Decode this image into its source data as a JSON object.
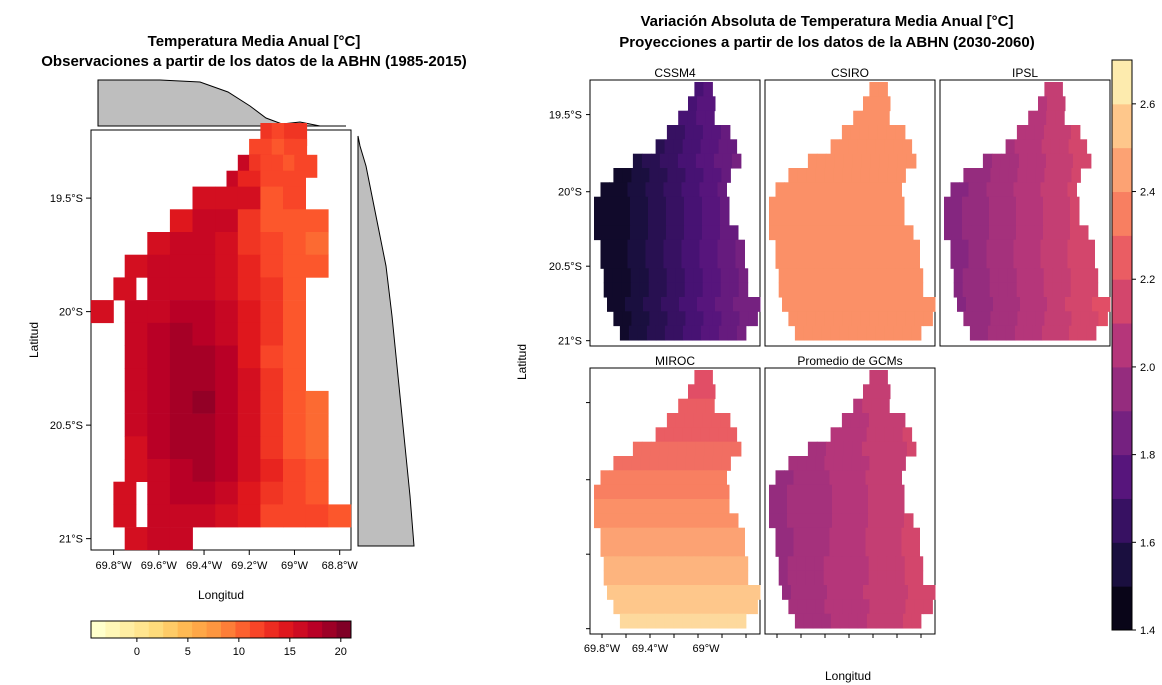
{
  "left_title": {
    "line1": "Temperatura Media Anual [°C]",
    "line2": "Observaciones a partir de los datos de la ABHN (1985-2015)"
  },
  "right_title": {
    "line1": "Variación Absoluta de Temperatura Media Anual [°C]",
    "line2": "Proyecciones a partir de los datos de la ABHN (2030-2060)"
  },
  "chart_data": [
    {
      "type": "heatmap",
      "title": "Temperatura Media Anual [°C]",
      "subtitle": "Observaciones a partir de los datos de la ABHN (1985-2015)",
      "xlabel": "Longitud",
      "ylabel": "Latitud",
      "x_ticks": [
        "69.8°W",
        "69.6°W",
        "69.4°W",
        "69.2°W",
        "69°W",
        "68.8°W"
      ],
      "y_ticks": [
        "19.5°S",
        "20°S",
        "20.5°S",
        "21°S"
      ],
      "x_range": [
        -69.9,
        -68.75
      ],
      "y_range": [
        -19.2,
        -21.05
      ],
      "colorbar": {
        "ticks": [
          "0",
          "5",
          "10",
          "15",
          "20"
        ],
        "range": [
          -4.5,
          21
        ],
        "palette": "YlOrRd"
      },
      "marginal_histograms": true,
      "cells": [
        [
          -19.22,
          -69.1,
          13
        ],
        [
          -19.22,
          -69.05,
          12
        ],
        [
          -19.22,
          -68.995,
          13
        ],
        [
          -19.29,
          -69.15,
          12
        ],
        [
          -19.29,
          -69.1,
          12
        ],
        [
          -19.29,
          -69.05,
          11
        ],
        [
          -19.29,
          -68.995,
          12
        ],
        [
          -19.36,
          -69.2,
          17
        ],
        [
          -19.36,
          -69.15,
          13
        ],
        [
          -19.36,
          -69.1,
          12
        ],
        [
          -19.36,
          -69.05,
          12
        ],
        [
          -19.36,
          -69.0,
          11
        ],
        [
          -19.36,
          -68.95,
          12
        ],
        [
          -19.43,
          -69.25,
          17
        ],
        [
          -19.43,
          -69.2,
          14
        ],
        [
          -19.43,
          -69.1,
          12
        ],
        [
          -19.43,
          -69.0,
          12
        ],
        [
          -19.5,
          -69.4,
          16
        ],
        [
          -19.5,
          -69.3,
          16
        ],
        [
          -19.5,
          -69.2,
          16
        ],
        [
          -19.5,
          -69.1,
          11
        ],
        [
          -19.5,
          -69.0,
          12
        ],
        [
          -19.6,
          -69.5,
          15
        ],
        [
          -19.6,
          -69.4,
          17
        ],
        [
          -19.6,
          -69.3,
          17
        ],
        [
          -19.6,
          -69.2,
          13
        ],
        [
          -19.6,
          -69.1,
          11
        ],
        [
          -19.6,
          -69.0,
          11
        ],
        [
          -19.6,
          -68.9,
          11
        ],
        [
          -19.7,
          -69.6,
          16
        ],
        [
          -19.7,
          -69.5,
          17
        ],
        [
          -19.7,
          -69.4,
          17
        ],
        [
          -19.7,
          -69.3,
          16
        ],
        [
          -19.7,
          -69.2,
          13
        ],
        [
          -19.7,
          -69.1,
          12
        ],
        [
          -19.7,
          -69.0,
          11
        ],
        [
          -19.7,
          -68.9,
          10
        ],
        [
          -19.8,
          -69.7,
          16
        ],
        [
          -19.8,
          -69.6,
          17
        ],
        [
          -19.8,
          -69.5,
          17
        ],
        [
          -19.8,
          -69.4,
          17
        ],
        [
          -19.8,
          -69.3,
          16
        ],
        [
          -19.8,
          -69.2,
          14
        ],
        [
          -19.8,
          -69.1,
          12
        ],
        [
          -19.8,
          -69.0,
          11
        ],
        [
          -19.8,
          -68.9,
          11
        ],
        [
          -19.9,
          -69.75,
          16
        ],
        [
          -19.9,
          -69.6,
          17
        ],
        [
          -19.9,
          -69.5,
          17
        ],
        [
          -19.9,
          -69.4,
          17
        ],
        [
          -19.9,
          -69.3,
          16
        ],
        [
          -19.9,
          -69.2,
          14
        ],
        [
          -19.9,
          -69.1,
          13
        ],
        [
          -19.9,
          -69.0,
          11
        ],
        [
          -20.0,
          -69.85,
          16
        ],
        [
          -20.0,
          -69.7,
          17
        ],
        [
          -20.0,
          -69.6,
          17
        ],
        [
          -20.0,
          -69.5,
          18
        ],
        [
          -20.0,
          -69.4,
          18
        ],
        [
          -20.0,
          -69.3,
          17
        ],
        [
          -20.0,
          -69.2,
          15
        ],
        [
          -20.0,
          -69.1,
          13
        ],
        [
          -20.0,
          -69.0,
          11
        ],
        [
          -20.1,
          -69.7,
          17
        ],
        [
          -20.1,
          -69.6,
          18
        ],
        [
          -20.1,
          -69.5,
          19
        ],
        [
          -20.1,
          -69.4,
          18
        ],
        [
          -20.1,
          -69.3,
          17
        ],
        [
          -20.1,
          -69.2,
          15
        ],
        [
          -20.1,
          -69.1,
          13
        ],
        [
          -20.1,
          -69.0,
          11
        ],
        [
          -20.2,
          -69.7,
          17
        ],
        [
          -20.2,
          -69.6,
          18
        ],
        [
          -20.2,
          -69.5,
          19
        ],
        [
          -20.2,
          -69.4,
          19
        ],
        [
          -20.2,
          -69.3,
          18
        ],
        [
          -20.2,
          -69.2,
          15
        ],
        [
          -20.2,
          -69.1,
          12
        ],
        [
          -20.2,
          -69.0,
          11
        ],
        [
          -20.3,
          -69.7,
          17
        ],
        [
          -20.3,
          -69.6,
          18
        ],
        [
          -20.3,
          -69.5,
          19
        ],
        [
          -20.3,
          -69.4,
          19
        ],
        [
          -20.3,
          -69.3,
          18
        ],
        [
          -20.3,
          -69.2,
          16
        ],
        [
          -20.3,
          -69.1,
          13
        ],
        [
          -20.3,
          -69.0,
          11
        ],
        [
          -20.4,
          -69.7,
          17
        ],
        [
          -20.4,
          -69.6,
          18
        ],
        [
          -20.4,
          -69.5,
          19
        ],
        [
          -20.4,
          -69.4,
          20
        ],
        [
          -20.4,
          -69.3,
          18
        ],
        [
          -20.4,
          -69.2,
          16
        ],
        [
          -20.4,
          -69.1,
          13
        ],
        [
          -20.4,
          -69.0,
          11
        ],
        [
          -20.4,
          -68.9,
          10
        ],
        [
          -20.5,
          -69.7,
          17
        ],
        [
          -20.5,
          -69.6,
          18
        ],
        [
          -20.5,
          -69.5,
          19
        ],
        [
          -20.5,
          -69.4,
          19
        ],
        [
          -20.5,
          -69.3,
          18
        ],
        [
          -20.5,
          -69.2,
          16
        ],
        [
          -20.5,
          -69.1,
          13
        ],
        [
          -20.5,
          -69.0,
          11
        ],
        [
          -20.5,
          -68.9,
          10
        ],
        [
          -20.6,
          -69.7,
          16
        ],
        [
          -20.6,
          -69.6,
          18
        ],
        [
          -20.6,
          -69.5,
          19
        ],
        [
          -20.6,
          -69.4,
          19
        ],
        [
          -20.6,
          -69.3,
          18
        ],
        [
          -20.6,
          -69.2,
          16
        ],
        [
          -20.6,
          -69.1,
          13
        ],
        [
          -20.6,
          -69.0,
          11
        ],
        [
          -20.6,
          -68.9,
          10
        ],
        [
          -20.7,
          -69.7,
          16
        ],
        [
          -20.7,
          -69.6,
          17
        ],
        [
          -20.7,
          -69.5,
          18
        ],
        [
          -20.7,
          -69.4,
          19
        ],
        [
          -20.7,
          -69.3,
          18
        ],
        [
          -20.7,
          -69.2,
          16
        ],
        [
          -20.7,
          -69.1,
          14
        ],
        [
          -20.7,
          -69.0,
          12
        ],
        [
          -20.7,
          -68.9,
          11
        ],
        [
          -20.8,
          -69.75,
          16
        ],
        [
          -20.8,
          -69.6,
          17
        ],
        [
          -20.8,
          -69.5,
          18
        ],
        [
          -20.8,
          -69.4,
          18
        ],
        [
          -20.8,
          -69.3,
          17
        ],
        [
          -20.8,
          -69.2,
          15
        ],
        [
          -20.8,
          -69.1,
          13
        ],
        [
          -20.8,
          -69.0,
          12
        ],
        [
          -20.8,
          -68.9,
          11
        ],
        [
          -20.9,
          -69.75,
          16
        ],
        [
          -20.9,
          -69.6,
          17
        ],
        [
          -20.9,
          -69.5,
          17
        ],
        [
          -20.9,
          -69.4,
          17
        ],
        [
          -20.9,
          -69.3,
          16
        ],
        [
          -20.9,
          -69.2,
          15
        ],
        [
          -20.9,
          -69.1,
          12
        ],
        [
          -20.9,
          -69.0,
          12
        ],
        [
          -20.9,
          -68.9,
          12
        ],
        [
          -20.9,
          -68.8,
          11
        ],
        [
          -21.0,
          -69.7,
          16
        ],
        [
          -21.0,
          -69.6,
          17
        ],
        [
          -21.0,
          -69.5,
          17
        ]
      ]
    },
    {
      "type": "heatmap",
      "title": "Variación Absoluta de Temperatura Media Anual [°C]",
      "subtitle": "Proyecciones a partir de los datos de la ABHN (2030-2060)",
      "xlabel": "Longitud",
      "ylabel": "Latitud",
      "x_ticks": [
        "69.8°W",
        "69.4°W",
        "69°W"
      ],
      "y_ticks": [
        "19.5°S",
        "20°S",
        "20.5°S",
        "21°S"
      ],
      "colorbar": {
        "ticks": [
          "1.4",
          "1.6",
          "1.8",
          "2.0",
          "2.2",
          "2.4",
          "2.6"
        ],
        "range": [
          1.4,
          2.7
        ],
        "palette": "magma"
      },
      "panels": [
        {
          "name": "CSSM4",
          "min": 1.48,
          "max": 1.86,
          "pattern": "east"
        },
        {
          "name": "CSIRO",
          "min": 2.38,
          "max": 2.38,
          "pattern": "uniform"
        },
        {
          "name": "IPSL",
          "min": 1.92,
          "max": 2.18,
          "pattern": "east"
        },
        {
          "name": "MIROC",
          "min": 2.18,
          "max": 2.58,
          "pattern": "south"
        },
        {
          "name": "Promedio de GCMs",
          "min": 1.97,
          "max": 2.15,
          "pattern": "east"
        }
      ]
    }
  ]
}
